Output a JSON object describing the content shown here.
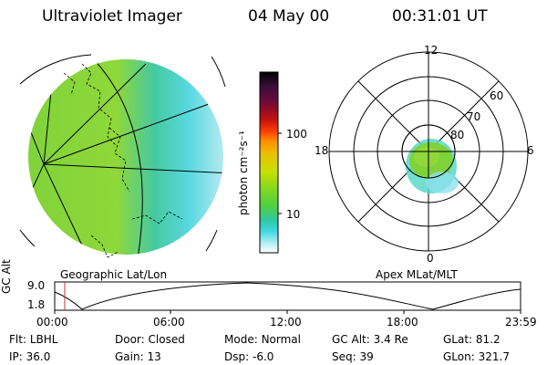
{
  "header": {
    "title": "Ultraviolet Imager",
    "date": "04 May 00",
    "time": "00:31:01 UT"
  },
  "colorbar": {
    "unit_label": "photon cm⁻²s⁻¹",
    "ticks": [
      "100",
      "10"
    ],
    "log_scale": true,
    "colors": [
      "#000000",
      "#3b0f3b",
      "#6a0a3a",
      "#a00020",
      "#d01818",
      "#ff4000",
      "#ff8c00",
      "#e8c000",
      "#c8e000",
      "#90e000",
      "#50d040",
      "#30c8a0",
      "#40d8e0",
      "#a0e8f0",
      "#ffffff"
    ]
  },
  "left_panel": {
    "caption": "Geographic Lat/Lon"
  },
  "right_panel": {
    "caption": "Apex MLat/MLT",
    "mlt_labels": {
      "top": "12",
      "left": "18",
      "right": "6",
      "bottom": "0"
    },
    "lat_labels": [
      "60",
      "70",
      "80"
    ]
  },
  "altitude_plot": {
    "y_title": "GC Alt",
    "y_ticks": [
      "9.0",
      "1.8"
    ],
    "x_ticks": [
      "00:00",
      "06:00",
      "12:00",
      "18:00",
      "23:59"
    ]
  },
  "info": {
    "row1": [
      {
        "key": "Flt:",
        "value": "LBHL"
      },
      {
        "key": "Door:",
        "value": "Closed"
      },
      {
        "key": "Mode:",
        "value": "Normal"
      },
      {
        "key": "GC Alt:",
        "value": "3.4 Re"
      },
      {
        "key": "GLat:",
        "value": "81.2"
      }
    ],
    "row2": [
      {
        "key": "IP:",
        "value": "36.0"
      },
      {
        "key": "Gain:",
        "value": "13"
      },
      {
        "key": "Dsp:",
        "value": "-6.0"
      },
      {
        "key": "Seq:",
        "value": "39"
      },
      {
        "key": "GLon:",
        "value": "321.7"
      }
    ]
  }
}
